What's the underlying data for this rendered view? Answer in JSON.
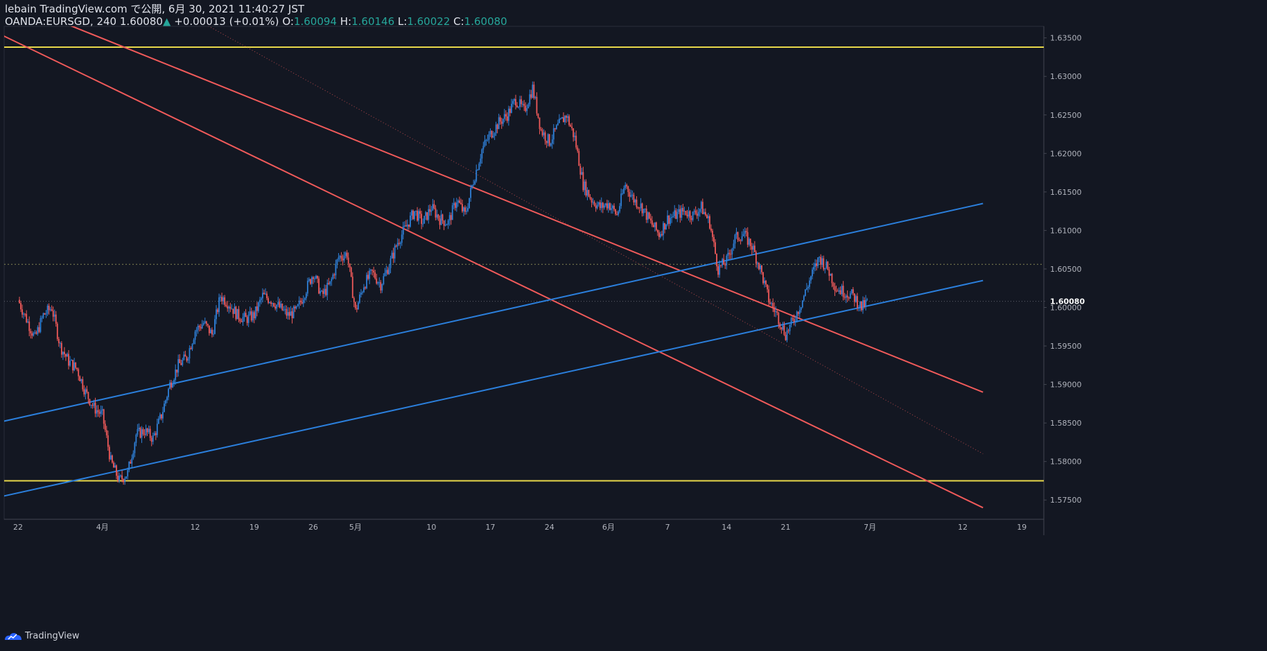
{
  "header": {
    "line1": "lebain TradingView.com で公開, 6月 30, 2021 11:40:27 JST",
    "symbol": "OANDA:EURSGD, 240",
    "last": "1.60080",
    "arrow": "▲",
    "change": "+0.00013 (+0.01%)",
    "o_label": "O:",
    "o_value": "1.60094",
    "h_label": "H:",
    "h_value": "1.60146",
    "l_label": "L:",
    "l_value": "1.60022",
    "c_label": "C:",
    "c_value": "1.60080"
  },
  "footer": {
    "brand": "TradingView"
  },
  "colors": {
    "background": "#131722",
    "up": "#2f80d8",
    "down": "#f05a5a",
    "channel_red": "#f05a5a",
    "channel_blue": "#2b7fdc",
    "horizontal_yellow": "#e8d84a",
    "axis_text": "#b2b5be"
  },
  "chart_data": {
    "type": "candlestick",
    "symbol": "OANDA:EURSGD",
    "interval": "240",
    "ylim": [
      1.5725,
      1.6365
    ],
    "y_ticks": [
      "1.63500",
      "1.63000",
      "1.62500",
      "1.62000",
      "1.61500",
      "1.61000",
      "1.60500",
      "1.60080",
      "1.60000",
      "1.59500",
      "1.59000",
      "1.58500",
      "1.58000",
      "1.57500"
    ],
    "y_tick_values": [
      1.635,
      1.63,
      1.625,
      1.62,
      1.615,
      1.61,
      1.605,
      1.6008,
      1.6,
      1.595,
      1.59,
      1.585,
      1.58,
      1.575
    ],
    "last_price": 1.6008,
    "x_labels": [
      "22",
      "4月",
      "12",
      "19",
      "26",
      "5月",
      "10",
      "17",
      "24",
      "6月",
      "7",
      "14",
      "21",
      "7月",
      "12",
      "19"
    ],
    "x_label_days": [
      0,
      10,
      21,
      28,
      35,
      40,
      49,
      56,
      63,
      70,
      77,
      84,
      91,
      101,
      112,
      119
    ],
    "close_path": [
      [
        0,
        1.601
      ],
      [
        1,
        1.5985
      ],
      [
        2,
        1.596
      ],
      [
        3,
        1.599
      ],
      [
        4,
        1.6
      ],
      [
        5,
        1.595
      ],
      [
        6,
        1.593
      ],
      [
        7,
        1.592
      ],
      [
        8,
        1.589
      ],
      [
        9,
        1.587
      ],
      [
        10,
        1.586
      ],
      [
        11,
        1.58
      ],
      [
        12,
        1.5775
      ],
      [
        13,
        1.5785
      ],
      [
        14,
        1.5835
      ],
      [
        15,
        1.584
      ],
      [
        16,
        1.583
      ],
      [
        17,
        1.586
      ],
      [
        18,
        1.59
      ],
      [
        19,
        1.5925
      ],
      [
        20,
        1.5935
      ],
      [
        21,
        1.597
      ],
      [
        22,
        1.598
      ],
      [
        23,
        1.5965
      ],
      [
        24,
        1.6015
      ],
      [
        25,
        1.6005
      ],
      [
        26,
        1.599
      ],
      [
        27,
        1.5985
      ],
      [
        28,
        1.599
      ],
      [
        29,
        1.6015
      ],
      [
        30,
        1.601
      ],
      [
        31,
        1.6
      ],
      [
        32,
        1.599
      ],
      [
        33,
        1.5995
      ],
      [
        34,
        1.602
      ],
      [
        35,
        1.6045
      ],
      [
        36,
        1.6015
      ],
      [
        37,
        1.603
      ],
      [
        38,
        1.6065
      ],
      [
        39,
        1.607
      ],
      [
        40,
        1.5995
      ],
      [
        41,
        1.603
      ],
      [
        42,
        1.6045
      ],
      [
        43,
        1.603
      ],
      [
        44,
        1.6055
      ],
      [
        45,
        1.6085
      ],
      [
        46,
        1.6105
      ],
      [
        47,
        1.6125
      ],
      [
        48,
        1.611
      ],
      [
        49,
        1.613
      ],
      [
        50,
        1.6115
      ],
      [
        51,
        1.611
      ],
      [
        52,
        1.614
      ],
      [
        53,
        1.612
      ],
      [
        54,
        1.6165
      ],
      [
        55,
        1.6205
      ],
      [
        56,
        1.6225
      ],
      [
        57,
        1.624
      ],
      [
        58,
        1.625
      ],
      [
        59,
        1.627
      ],
      [
        60,
        1.6255
      ],
      [
        61,
        1.6285
      ],
      [
        62,
        1.623
      ],
      [
        63,
        1.6215
      ],
      [
        64,
        1.6235
      ],
      [
        65,
        1.625
      ],
      [
        66,
        1.622
      ],
      [
        67,
        1.616
      ],
      [
        68,
        1.614
      ],
      [
        69,
        1.613
      ],
      [
        70,
        1.6135
      ],
      [
        71,
        1.612
      ],
      [
        72,
        1.616
      ],
      [
        73,
        1.614
      ],
      [
        74,
        1.613
      ],
      [
        75,
        1.611
      ],
      [
        76,
        1.6095
      ],
      [
        77,
        1.6115
      ],
      [
        78,
        1.612
      ],
      [
        79,
        1.6125
      ],
      [
        80,
        1.612
      ],
      [
        81,
        1.613
      ],
      [
        82,
        1.611
      ],
      [
        83,
        1.605
      ],
      [
        84,
        1.606
      ],
      [
        85,
        1.609
      ],
      [
        86,
        1.6095
      ],
      [
        87,
        1.608
      ],
      [
        88,
        1.605
      ],
      [
        89,
        1.601
      ],
      [
        90,
        1.599
      ],
      [
        91,
        1.5965
      ],
      [
        92,
        1.5985
      ],
      [
        93,
        1.601
      ],
      [
        94,
        1.604
      ],
      [
        95,
        1.6065
      ],
      [
        96,
        1.605
      ],
      [
        97,
        1.6025
      ],
      [
        98,
        1.602
      ],
      [
        99,
        1.6015
      ],
      [
        100,
        1.6
      ],
      [
        100.8,
        1.6008
      ]
    ],
    "channel_lines": [
      {
        "name": "red-upper",
        "p1": [
          -8.8,
          1.6432
        ],
        "p2": [
          114.4,
          1.589
        ]
      },
      {
        "name": "red-mid-dotted",
        "p1": [
          -8.8,
          1.6555
        ],
        "p2": [
          114.4,
          1.581
        ]
      },
      {
        "name": "red-lower",
        "p1": [
          -8.8,
          1.639
        ],
        "p2": [
          114.4,
          1.574
        ]
      },
      {
        "name": "blue-upper",
        "p1": [
          -8.8,
          1.5835
        ],
        "p2": [
          114.4,
          1.6135
        ]
      },
      {
        "name": "blue-lower",
        "p1": [
          -8.8,
          1.5738
        ],
        "p2": [
          114.4,
          1.6035
        ]
      }
    ],
    "horizontal_lines": [
      {
        "name": "resistance-yellow",
        "value": 1.6338
      },
      {
        "name": "support-yellow",
        "value": 1.5775
      },
      {
        "name": "dotted-level",
        "value": 1.6056
      }
    ]
  }
}
